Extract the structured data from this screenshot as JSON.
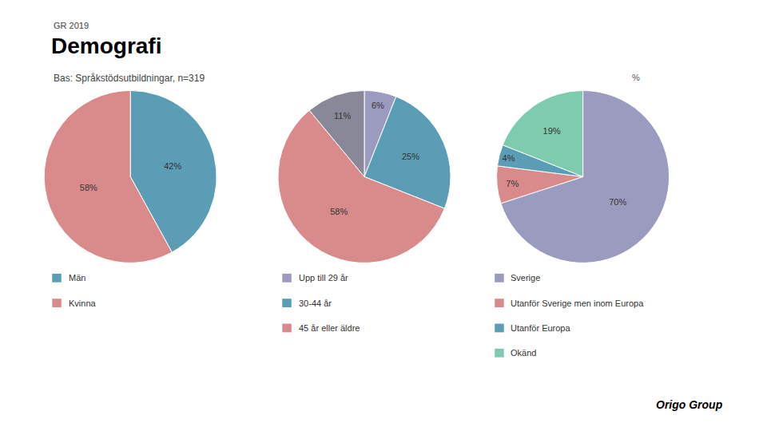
{
  "title": "Demografi",
  "subtitle": "Bas: Språkstödsutbildningar, n=319",
  "annotations": [
    "GR 2019",
    "%",
    "Origo Group"
  ],
  "chart_data": [
    {
      "type": "pie",
      "categories": [
        "Män",
        "Kvinna"
      ],
      "values": [
        42,
        58
      ],
      "value_labels": [
        "42%",
        "58%"
      ],
      "colors": [
        "#5b9db5",
        "#d98b8b"
      ],
      "data_labels": true
    },
    {
      "type": "pie",
      "categories": [
        "Upp till 29 år",
        "30-44 år",
        "45 år eller äldre",
        null
      ],
      "values": [
        6,
        25,
        58,
        11
      ],
      "value_labels": [
        "6%",
        "25%",
        "58%",
        "11%"
      ],
      "colors": [
        "#9b9bbf",
        "#5b9db5",
        "#d98b8b",
        "#888899"
      ],
      "data_labels": true
    },
    {
      "type": "pie",
      "categories": [
        "Sverige",
        "Utanför Sverige men inom Europa",
        "Utanför Europa",
        "Okänd"
      ],
      "values": [
        70,
        7,
        4,
        19
      ],
      "value_labels": [
        "70%",
        "7%",
        "4%",
        "19%"
      ],
      "colors": [
        "#9b9bbf",
        "#d98b8b",
        "#5b9db5",
        "#7ecbad"
      ],
      "data_labels": true
    }
  ]
}
